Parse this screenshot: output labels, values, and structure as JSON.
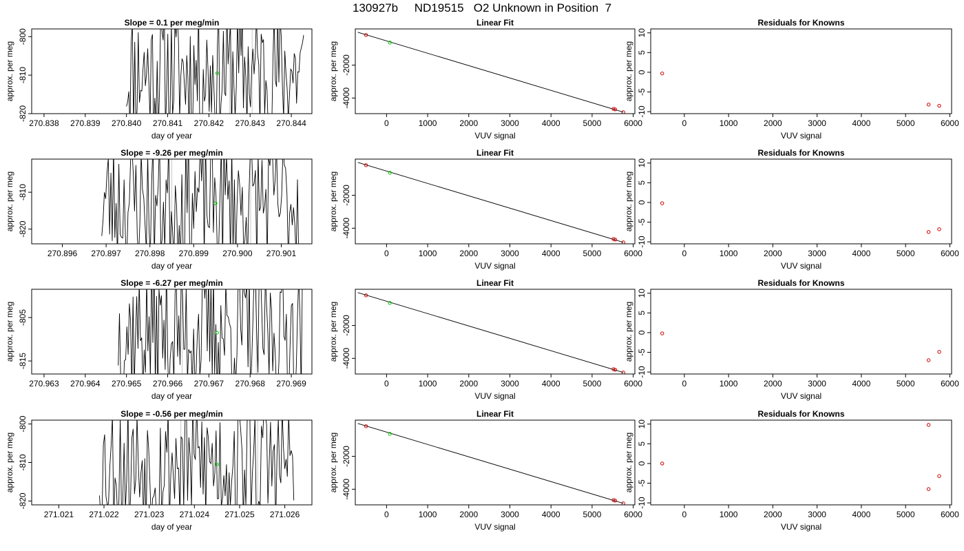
{
  "page_title": "130927b     ND19515   O2 Unknown in Position  7",
  "colors": {
    "trace": "#000000",
    "unknown": "#00cc00",
    "known": "#cc0000",
    "vline": "#c8c8c8"
  },
  "chart_data": [
    {
      "type": "line",
      "title": "Slope =  0.1  per meg/min",
      "xlabel": "day of year",
      "ylabel": "approx. per meg",
      "xlim": [
        270.8377,
        270.8445
      ],
      "ylim": [
        -820,
        -798
      ],
      "xticks": [
        270.838,
        270.839,
        270.84,
        270.841,
        270.842,
        270.843,
        270.844
      ],
      "xtick_labels": [
        "270.838",
        "270.839",
        "270.840",
        "270.841",
        "270.842",
        "270.843",
        "270.844"
      ],
      "yticks": [
        -800,
        -810,
        -820
      ],
      "ytick_labels": [
        "-800",
        "-810",
        "-820"
      ],
      "trace_x_range": [
        270.84,
        270.8443
      ],
      "vlines": [
        270.8425,
        270.84305
      ],
      "unknown_point": [
        270.8422,
        -809.5
      ],
      "trace_seed": 11
    },
    {
      "type": "line",
      "title": "Slope =  -9.26  per meg/min",
      "xlabel": "day of year",
      "ylabel": "approx. per meg",
      "xlim": [
        270.8953,
        270.9017
      ],
      "ylim": [
        -824,
        -801
      ],
      "xticks": [
        270.896,
        270.897,
        270.898,
        270.899,
        270.9,
        270.901
      ],
      "xtick_labels": [
        "270.896",
        "270.897",
        "270.898",
        "270.899",
        "270.900",
        "270.901"
      ],
      "yticks": [
        -810,
        -820
      ],
      "ytick_labels": [
        "-810",
        "-820"
      ],
      "trace_x_range": [
        270.8969,
        270.9014
      ],
      "vlines": [
        270.8985,
        270.9003
      ],
      "unknown_point": [
        270.8995,
        -813
      ],
      "trace_seed": 23
    },
    {
      "type": "line",
      "title": "Slope =  -6.27  per meg/min",
      "xlabel": "day of year",
      "ylabel": "approx. per meg",
      "xlim": [
        270.9627,
        270.9695
      ],
      "ylim": [
        -818,
        -798.5
      ],
      "xticks": [
        270.963,
        270.964,
        270.965,
        270.966,
        270.967,
        270.968,
        270.969
      ],
      "xtick_labels": [
        "270.963",
        "270.964",
        "270.965",
        "270.966",
        "270.967",
        "270.968",
        "270.969"
      ],
      "yticks": [
        -805,
        -815
      ],
      "ytick_labels": [
        "-805",
        "-815"
      ],
      "trace_x_range": [
        270.9648,
        270.9693
      ],
      "vlines": [
        270.96635,
        270.96815
      ],
      "unknown_point": [
        270.9672,
        -808.5
      ],
      "trace_seed": 37
    },
    {
      "type": "line",
      "title": "Slope =  -0.56  per meg/min",
      "xlabel": "day of year",
      "ylabel": "approx. per meg",
      "xlim": [
        271.0204,
        271.0266
      ],
      "ylim": [
        -821,
        -799
      ],
      "xticks": [
        271.021,
        271.022,
        271.023,
        271.024,
        271.025,
        271.026
      ],
      "xtick_labels": [
        "271.021",
        "271.022",
        "271.023",
        "271.024",
        "271.025",
        "271.026"
      ],
      "yticks": [
        -800,
        -810,
        -820
      ],
      "ytick_labels": [
        "-800",
        "-810",
        "-820"
      ],
      "trace_x_range": [
        271.0219,
        271.0262
      ],
      "vlines": [
        271.0237,
        271.0254
      ],
      "unknown_point": [
        271.0245,
        -810.5
      ],
      "trace_seed": 53
    },
    {
      "type": "scatter",
      "title": "Linear Fit",
      "xlabel": "VUV signal",
      "ylabel": "approx. per meg",
      "xlim": [
        -760,
        6040
      ],
      "ylim": [
        -4950,
        200
      ],
      "xticks": [
        0,
        1000,
        2000,
        3000,
        4000,
        5000,
        6000
      ],
      "xtick_labels": [
        "0",
        "1000",
        "2000",
        "3000",
        "4000",
        "5000",
        "6000"
      ],
      "yticks": [
        -2000,
        -4000
      ],
      "ytick_labels": [
        "-2000",
        "-4000"
      ],
      "fit_line": [
        [
          -700,
          0
        ],
        [
          5760,
          -4860
        ]
      ],
      "knowns": [
        [
          -500,
          -170
        ],
        [
          5520,
          -4660
        ],
        [
          5560,
          -4690
        ],
        [
          5760,
          -4860
        ]
      ],
      "unknown": [
        [
          80,
          -630
        ]
      ]
    },
    {
      "type": "scatter",
      "title": "Linear Fit",
      "xlabel": "VUV signal",
      "ylabel": "approx. per meg",
      "xlim": [
        -760,
        6040
      ],
      "ylim": [
        -4950,
        200
      ],
      "xticks": [
        0,
        1000,
        2000,
        3000,
        4000,
        5000,
        6000
      ],
      "xtick_labels": [
        "0",
        "1000",
        "2000",
        "3000",
        "4000",
        "5000",
        "6000"
      ],
      "yticks": [
        -2000,
        -4000
      ],
      "ytick_labels": [
        "-2000",
        "-4000"
      ],
      "fit_line": [
        [
          -700,
          0
        ],
        [
          5760,
          -4860
        ]
      ],
      "knowns": [
        [
          -500,
          -170
        ],
        [
          5520,
          -4660
        ],
        [
          5560,
          -4690
        ],
        [
          5760,
          -4860
        ]
      ],
      "unknown": [
        [
          80,
          -630
        ]
      ]
    },
    {
      "type": "scatter",
      "title": "Linear Fit",
      "xlabel": "VUV signal",
      "ylabel": "approx. per meg",
      "xlim": [
        -760,
        6040
      ],
      "ylim": [
        -4950,
        200
      ],
      "xticks": [
        0,
        1000,
        2000,
        3000,
        4000,
        5000,
        6000
      ],
      "xtick_labels": [
        "0",
        "1000",
        "2000",
        "3000",
        "4000",
        "5000",
        "6000"
      ],
      "yticks": [
        -2000,
        -4000
      ],
      "ytick_labels": [
        "-2000",
        "-4000"
      ],
      "fit_line": [
        [
          -700,
          0
        ],
        [
          5760,
          -4860
        ]
      ],
      "knowns": [
        [
          -500,
          -170
        ],
        [
          5520,
          -4660
        ],
        [
          5560,
          -4690
        ],
        [
          5760,
          -4860
        ]
      ],
      "unknown": [
        [
          80,
          -630
        ]
      ]
    },
    {
      "type": "scatter",
      "title": "Linear Fit",
      "xlabel": "VUV signal",
      "ylabel": "approx. per meg",
      "xlim": [
        -760,
        6040
      ],
      "ylim": [
        -4950,
        200
      ],
      "xticks": [
        0,
        1000,
        2000,
        3000,
        4000,
        5000,
        6000
      ],
      "xtick_labels": [
        "0",
        "1000",
        "2000",
        "3000",
        "4000",
        "5000",
        "6000"
      ],
      "yticks": [
        -2000,
        -4000
      ],
      "ytick_labels": [
        "-2000",
        "-4000"
      ],
      "fit_line": [
        [
          -700,
          0
        ],
        [
          5760,
          -4860
        ]
      ],
      "knowns": [
        [
          -500,
          -170
        ],
        [
          5520,
          -4660
        ],
        [
          5560,
          -4690
        ],
        [
          5760,
          -4860
        ]
      ],
      "unknown": [
        [
          80,
          -630
        ]
      ]
    },
    {
      "type": "scatter",
      "title": "Residuals for Knowns",
      "xlabel": "VUV signal",
      "ylabel": "approx. per meg",
      "xlim": [
        -760,
        6040
      ],
      "ylim": [
        -10.5,
        11
      ],
      "xticks": [
        0,
        1000,
        2000,
        3000,
        4000,
        5000,
        6000
      ],
      "xtick_labels": [
        "0",
        "1000",
        "2000",
        "3000",
        "4000",
        "5000",
        "6000"
      ],
      "yticks": [
        10,
        5,
        0,
        -5,
        -10
      ],
      "ytick_labels": [
        "10",
        "5",
        "0",
        "-5",
        "-10"
      ],
      "knowns": [
        [
          -500,
          -0.3
        ],
        [
          5520,
          -8.2
        ],
        [
          5760,
          -8.5
        ]
      ]
    },
    {
      "type": "scatter",
      "title": "Residuals for Knowns",
      "xlabel": "VUV signal",
      "ylabel": "approx. per meg",
      "xlim": [
        -760,
        6040
      ],
      "ylim": [
        -10.5,
        11
      ],
      "xticks": [
        0,
        1000,
        2000,
        3000,
        4000,
        5000,
        6000
      ],
      "xtick_labels": [
        "0",
        "1000",
        "2000",
        "3000",
        "4000",
        "5000",
        "6000"
      ],
      "yticks": [
        10,
        5,
        0,
        -5,
        -10
      ],
      "ytick_labels": [
        "10",
        "5",
        "0",
        "-5",
        "-10"
      ],
      "knowns": [
        [
          -500,
          -0.2
        ],
        [
          5520,
          -7.5
        ],
        [
          5760,
          -6.8
        ]
      ]
    },
    {
      "type": "scatter",
      "title": "Residuals for Knowns",
      "xlabel": "VUV signal",
      "ylabel": "approx. per meg",
      "xlim": [
        -760,
        6040
      ],
      "ylim": [
        -10.5,
        11
      ],
      "xticks": [
        0,
        1000,
        2000,
        3000,
        4000,
        5000,
        6000
      ],
      "xtick_labels": [
        "0",
        "1000",
        "2000",
        "3000",
        "4000",
        "5000",
        "6000"
      ],
      "yticks": [
        10,
        5,
        0,
        -5,
        -10
      ],
      "ytick_labels": [
        "10",
        "5",
        "0",
        "-5",
        "-10"
      ],
      "knowns": [
        [
          -500,
          -0.2
        ],
        [
          5520,
          -7.0
        ],
        [
          5760,
          -4.9
        ]
      ]
    },
    {
      "type": "scatter",
      "title": "Residuals for Knowns",
      "xlabel": "VUV signal",
      "ylabel": "approx. per meg",
      "xlim": [
        -760,
        6040
      ],
      "ylim": [
        -10.5,
        11
      ],
      "xticks": [
        0,
        1000,
        2000,
        3000,
        4000,
        5000,
        6000
      ],
      "xtick_labels": [
        "0",
        "1000",
        "2000",
        "3000",
        "4000",
        "5000",
        "6000"
      ],
      "yticks": [
        10,
        5,
        0,
        -5,
        -10
      ],
      "ytick_labels": [
        "10",
        "5",
        "0",
        "-5",
        "-10"
      ],
      "knowns": [
        [
          -500,
          0
        ],
        [
          5520,
          9.8
        ],
        [
          5520,
          -6.5
        ],
        [
          5760,
          -3.2
        ]
      ]
    }
  ]
}
